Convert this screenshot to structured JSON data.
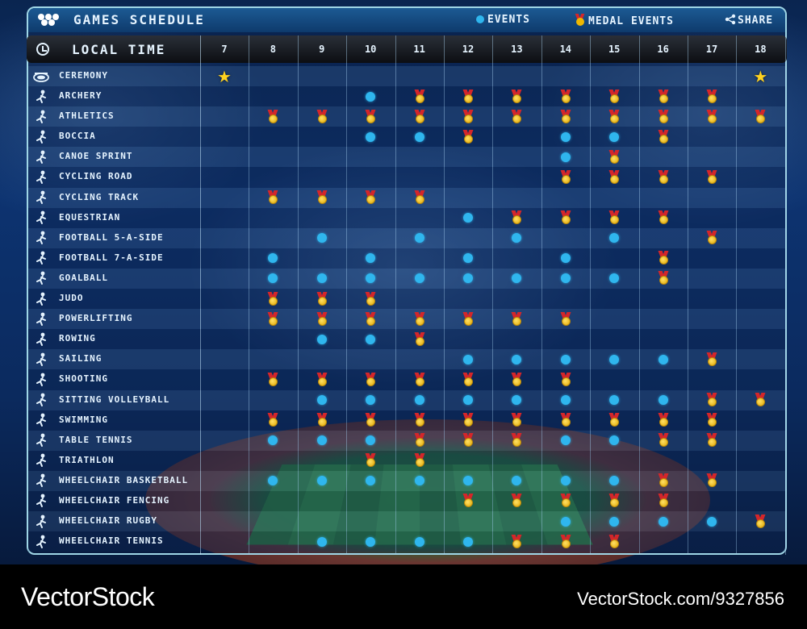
{
  "header": {
    "title": "GAMES SCHEDULE",
    "legend_events": "EVENTS",
    "legend_medal_events": "MEDAL EVENTS",
    "share_label": "SHARE",
    "local_time_label": "LOCAL TIME"
  },
  "days": [
    "7",
    "8",
    "9",
    "10",
    "11",
    "12",
    "13",
    "14",
    "15",
    "16",
    "17",
    "18"
  ],
  "legend_codes": {
    "E": "event",
    "M": "medal event",
    "S": "ceremony"
  },
  "colors": {
    "event_dot": "#2fb6ee",
    "medal": "#e0a800",
    "ribbon": "#d4262a",
    "star": "#ffd21f",
    "accent": "#9fd6e6"
  },
  "sports": [
    {
      "label": "CEREMONY",
      "icon": "stadium-icon",
      "cells": [
        "S",
        "",
        "",
        "",
        "",
        "",
        "",
        "",
        "",
        "",
        "",
        "S"
      ]
    },
    {
      "label": "ARCHERY",
      "icon": "archery-icon",
      "cells": [
        "",
        "",
        "",
        "E",
        "M",
        "M",
        "M",
        "M",
        "M",
        "M",
        "M",
        ""
      ]
    },
    {
      "label": "ATHLETICS",
      "icon": "athletics-icon",
      "cells": [
        "",
        "M",
        "M",
        "M",
        "M",
        "M",
        "M",
        "M",
        "M",
        "M",
        "M",
        "M"
      ]
    },
    {
      "label": "BOCCIA",
      "icon": "boccia-icon",
      "cells": [
        "",
        "",
        "",
        "E",
        "E",
        "M",
        "",
        "E",
        "E",
        "M",
        "",
        ""
      ]
    },
    {
      "label": "CANOE SPRINT",
      "icon": "canoe-icon",
      "cells": [
        "",
        "",
        "",
        "",
        "",
        "",
        "",
        "E",
        "M",
        "",
        "",
        ""
      ]
    },
    {
      "label": "CYCLING ROAD",
      "icon": "cycling-road-icon",
      "cells": [
        "",
        "",
        "",
        "",
        "",
        "",
        "",
        "M",
        "M",
        "M",
        "M",
        ""
      ]
    },
    {
      "label": "CYCLING TRACK",
      "icon": "cycling-track-icon",
      "cells": [
        "",
        "M",
        "M",
        "M",
        "M",
        "",
        "",
        "",
        "",
        "",
        "",
        ""
      ]
    },
    {
      "label": "EQUESTRIAN",
      "icon": "equestrian-icon",
      "cells": [
        "",
        "",
        "",
        "",
        "",
        "E",
        "M",
        "M",
        "M",
        "M",
        "",
        ""
      ]
    },
    {
      "label": "FOOTBALL 5-A-SIDE",
      "icon": "football-5-icon",
      "cells": [
        "",
        "",
        "E",
        "",
        "E",
        "",
        "E",
        "",
        "E",
        "",
        "M",
        ""
      ]
    },
    {
      "label": "FOOTBALL 7-A-SIDE",
      "icon": "football-7-icon",
      "cells": [
        "",
        "E",
        "",
        "E",
        "",
        "E",
        "",
        "E",
        "",
        "M",
        "",
        ""
      ]
    },
    {
      "label": "GOALBALL",
      "icon": "goalball-icon",
      "cells": [
        "",
        "E",
        "E",
        "E",
        "E",
        "E",
        "E",
        "E",
        "E",
        "M",
        "",
        ""
      ]
    },
    {
      "label": "JUDO",
      "icon": "judo-icon",
      "cells": [
        "",
        "M",
        "M",
        "M",
        "",
        "",
        "",
        "",
        "",
        "",
        "",
        ""
      ]
    },
    {
      "label": "POWERLIFTING",
      "icon": "powerlifting-icon",
      "cells": [
        "",
        "M",
        "M",
        "M",
        "M",
        "M",
        "M",
        "M",
        "",
        "",
        "",
        ""
      ]
    },
    {
      "label": "ROWING",
      "icon": "rowing-icon",
      "cells": [
        "",
        "",
        "E",
        "E",
        "M",
        "",
        "",
        "",
        "",
        "",
        "",
        ""
      ]
    },
    {
      "label": "SAILING",
      "icon": "sailing-icon",
      "cells": [
        "",
        "",
        "",
        "",
        "",
        "E",
        "E",
        "E",
        "E",
        "E",
        "M",
        ""
      ]
    },
    {
      "label": "SHOOTING",
      "icon": "shooting-icon",
      "cells": [
        "",
        "M",
        "M",
        "M",
        "M",
        "M",
        "M",
        "M",
        "",
        "",
        "",
        ""
      ]
    },
    {
      "label": "SITTING VOLLEYBALL",
      "icon": "sitting-volleyball-icon",
      "cells": [
        "",
        "",
        "E",
        "E",
        "E",
        "E",
        "E",
        "E",
        "E",
        "E",
        "M",
        "M"
      ]
    },
    {
      "label": "SWIMMING",
      "icon": "swimming-icon",
      "cells": [
        "",
        "M",
        "M",
        "M",
        "M",
        "M",
        "M",
        "M",
        "M",
        "M",
        "M",
        ""
      ]
    },
    {
      "label": "TABLE TENNIS",
      "icon": "table-tennis-icon",
      "cells": [
        "",
        "E",
        "E",
        "E",
        "M",
        "M",
        "M",
        "E",
        "E",
        "M",
        "M",
        ""
      ]
    },
    {
      "label": "TRIATHLON",
      "icon": "triathlon-icon",
      "cells": [
        "",
        "",
        "",
        "M",
        "M",
        "",
        "",
        "",
        "",
        "",
        "",
        ""
      ]
    },
    {
      "label": "WHEELCHAIR BASKETBALL",
      "icon": "wheelchair-basketball-icon",
      "cells": [
        "",
        "E",
        "E",
        "E",
        "E",
        "E",
        "E",
        "E",
        "E",
        "M",
        "M",
        ""
      ]
    },
    {
      "label": "WHEELCHAIR FENCING",
      "icon": "wheelchair-fencing-icon",
      "cells": [
        "",
        "",
        "",
        "",
        "",
        "M",
        "M",
        "M",
        "M",
        "M",
        "",
        ""
      ]
    },
    {
      "label": "WHEELCHAIR RUGBY",
      "icon": "wheelchair-rugby-icon",
      "cells": [
        "",
        "",
        "",
        "",
        "",
        "",
        "",
        "E",
        "E",
        "E",
        "E",
        "M"
      ]
    },
    {
      "label": "WHEELCHAIR TENNIS",
      "icon": "wheelchair-tennis-icon",
      "cells": [
        "",
        "",
        "E",
        "E",
        "E",
        "E",
        "M",
        "M",
        "M",
        "",
        "",
        ""
      ]
    }
  ],
  "footer": {
    "brand": "VectorStock",
    "url": "VectorStock.com/9327856"
  }
}
